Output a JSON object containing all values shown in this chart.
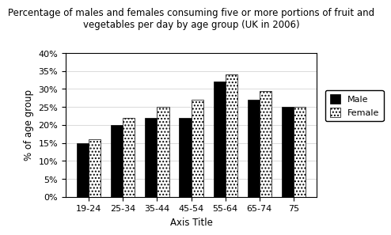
{
  "title": "Percentage of males and females consuming five or more portions of fruit and\nvegetables per day by age group (UK in 2006)",
  "categories": [
    "19-24",
    "25-34",
    "35-44",
    "45-54",
    "55-64",
    "65-74",
    "75"
  ],
  "male_values": [
    15,
    20,
    22,
    22,
    32,
    27,
    25
  ],
  "female_values": [
    16,
    22,
    25,
    27,
    34,
    29.5,
    25
  ],
  "male_color": "#000000",
  "female_color": "#ffffff",
  "female_hatch": "....",
  "xlabel": "Axis Title",
  "ylabel": "% of age group",
  "ylim": [
    0,
    40
  ],
  "yticks": [
    0,
    5,
    10,
    15,
    20,
    25,
    30,
    35,
    40
  ],
  "ytick_labels": [
    "0%",
    "5%",
    "10%",
    "15%",
    "20%",
    "25%",
    "30%",
    "35%",
    "40%"
  ],
  "legend_male": "Male",
  "legend_female": "Female",
  "bar_width": 0.35,
  "title_fontsize": 8.5,
  "axis_label_fontsize": 8.5,
  "tick_fontsize": 8,
  "legend_fontsize": 8
}
